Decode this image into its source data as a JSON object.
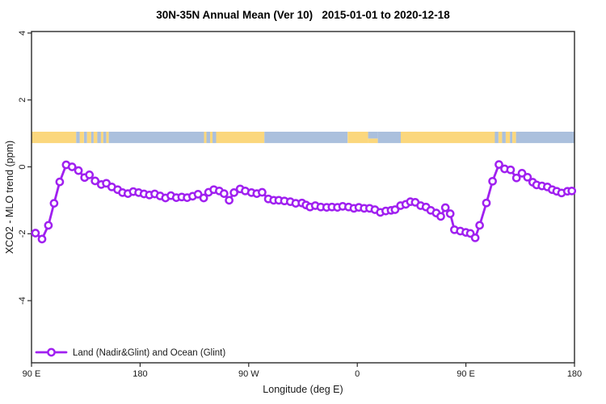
{
  "title": "30N-35N Annual Mean (Ver 10)   2015-01-01 to 2020-12-18",
  "chart_data": {
    "type": "line",
    "title": "30N-35N Annual Mean (Ver 10)   2015-01-01 to 2020-12-18",
    "xlabel": "Longitude (deg E)",
    "ylabel": "XCO2 - MLO trend (ppm)",
    "xlim": [
      90,
      540
    ],
    "ylim": [
      -5.9,
      4.1
    ],
    "grid": false,
    "x_ticks": [
      {
        "value": 90,
        "label": "90 E"
      },
      {
        "value": 180,
        "label": "180"
      },
      {
        "value": 270,
        "label": "90 W"
      },
      {
        "value": 360,
        "label": "0"
      },
      {
        "value": 450,
        "label": "90 E"
      },
      {
        "value": 540,
        "label": "180"
      }
    ],
    "y_ticks": [
      {
        "value": 4,
        "label": "4"
      },
      {
        "value": 2,
        "label": "2"
      },
      {
        "value": 0,
        "label": "0"
      },
      {
        "value": -2,
        "label": "-2"
      },
      {
        "value": -4,
        "label": "-4"
      }
    ],
    "legend": {
      "position": "bottom-left",
      "entries": [
        {
          "label": "Land (Nadir&Glint) and Ocean (Glint)",
          "color": "#A020F0",
          "marker": "open-circle"
        }
      ]
    },
    "series": [
      {
        "name": "Land (Nadir&Glint) and Ocean (Glint)",
        "color": "#A020F0",
        "x": [
          93.3,
          98.7,
          104.0,
          108.7,
          113.4,
          118.7,
          123.6,
          128.9,
          134.0,
          138.0,
          142.7,
          147.8,
          152.0,
          156.5,
          161.4,
          165.4,
          169.9,
          174.3,
          178.8,
          183.2,
          187.7,
          192.1,
          196.6,
          201.0,
          205.5,
          210.0,
          214.5,
          219.0,
          223.5,
          228.0,
          232.7,
          236.7,
          241.1,
          245.6,
          249.6,
          253.8,
          257.8,
          262.9,
          267.1,
          272.3,
          276.7,
          281.1,
          286.3,
          290.7,
          294.9,
          299.6,
          304.5,
          309.0,
          314.1,
          317.5,
          320.8,
          325.2,
          329.7,
          334.6,
          339.0,
          343.5,
          347.9,
          352.8,
          357.2,
          361.3,
          365.7,
          370.2,
          374.6,
          379.1,
          383.6,
          388.0,
          391.3,
          395.8,
          400.2,
          404.0,
          408.0,
          412.5,
          416.9,
          420.9,
          425.4,
          429.2,
          433.0,
          437.0,
          440.5,
          445.4,
          449.9,
          453.7,
          457.7,
          461.4,
          467.0,
          472.1,
          477.4,
          482.1,
          487.0,
          491.9,
          496.5,
          501.0,
          505.4,
          508.6,
          513.0,
          517.5,
          521.5,
          525.3,
          529.3,
          534.2,
          537.8
        ],
        "y": [
          -1.98,
          -2.16,
          -1.75,
          -1.09,
          -0.45,
          0.06,
          0.0,
          -0.11,
          -0.32,
          -0.24,
          -0.42,
          -0.53,
          -0.49,
          -0.6,
          -0.68,
          -0.77,
          -0.8,
          -0.74,
          -0.77,
          -0.81,
          -0.84,
          -0.81,
          -0.87,
          -0.93,
          -0.86,
          -0.92,
          -0.9,
          -0.92,
          -0.88,
          -0.82,
          -0.93,
          -0.76,
          -0.68,
          -0.72,
          -0.8,
          -1.0,
          -0.77,
          -0.66,
          -0.72,
          -0.77,
          -0.8,
          -0.76,
          -0.96,
          -1.0,
          -1.0,
          -1.02,
          -1.04,
          -1.09,
          -1.08,
          -1.14,
          -1.2,
          -1.16,
          -1.2,
          -1.21,
          -1.2,
          -1.21,
          -1.18,
          -1.2,
          -1.24,
          -1.21,
          -1.24,
          -1.24,
          -1.28,
          -1.36,
          -1.32,
          -1.3,
          -1.28,
          -1.16,
          -1.12,
          -1.04,
          -1.06,
          -1.16,
          -1.2,
          -1.3,
          -1.38,
          -1.48,
          -1.22,
          -1.4,
          -1.88,
          -1.92,
          -1.96,
          -1.99,
          -2.12,
          -1.75,
          -1.08,
          -0.43,
          0.07,
          -0.06,
          -0.09,
          -0.33,
          -0.19,
          -0.31,
          -0.46,
          -0.54,
          -0.57,
          -0.6,
          -0.68,
          -0.73,
          -0.78,
          -0.73,
          -0.72
        ]
      }
    ],
    "map_band": {
      "description": "coarse land/ocean map strip of the 30N-35N latitude belt",
      "y_range": [
        0.71,
        1.05
      ],
      "land_color": "#FBD77D",
      "ocean_color": "#ABC0DD",
      "segments": [
        {
          "from": 90,
          "to": 127,
          "surface": "land"
        },
        {
          "from": 127,
          "to": 130,
          "surface": "ocean"
        },
        {
          "from": 130,
          "to": 133.5,
          "surface": "land"
        },
        {
          "from": 133.5,
          "to": 136,
          "surface": "ocean"
        },
        {
          "from": 136,
          "to": 139.5,
          "surface": "land"
        },
        {
          "from": 139.5,
          "to": 141.5,
          "surface": "ocean"
        },
        {
          "from": 141.5,
          "to": 144.5,
          "surface": "land"
        },
        {
          "from": 144.5,
          "to": 147.5,
          "surface": "ocean"
        },
        {
          "from": 147.5,
          "to": 149.5,
          "surface": "land"
        },
        {
          "from": 149.5,
          "to": 152,
          "surface": "ocean"
        },
        {
          "from": 152,
          "to": 154,
          "surface": "land"
        },
        {
          "from": 154,
          "to": 233,
          "surface": "ocean"
        },
        {
          "from": 233,
          "to": 235,
          "surface": "land"
        },
        {
          "from": 235,
          "to": 238,
          "surface": "ocean"
        },
        {
          "from": 238,
          "to": 240,
          "surface": "land"
        },
        {
          "from": 240,
          "to": 243,
          "surface": "ocean"
        },
        {
          "from": 243,
          "to": 283,
          "surface": "land"
        },
        {
          "from": 283,
          "to": 352,
          "surface": "ocean"
        },
        {
          "from": 352,
          "to": 369,
          "surface": "land"
        },
        {
          "from": 369,
          "to": 377,
          "surface": "ocean",
          "band": [
            0,
            0.6
          ]
        },
        {
          "from": 369,
          "to": 377,
          "surface": "land",
          "band": [
            0.6,
            1
          ]
        },
        {
          "from": 377,
          "to": 396,
          "surface": "ocean"
        },
        {
          "from": 396,
          "to": 474,
          "surface": "land"
        },
        {
          "from": 474,
          "to": 477,
          "surface": "ocean"
        },
        {
          "from": 477,
          "to": 480,
          "surface": "land"
        },
        {
          "from": 480,
          "to": 483,
          "surface": "ocean"
        },
        {
          "from": 483,
          "to": 486.5,
          "surface": "land"
        },
        {
          "from": 486.5,
          "to": 488.5,
          "surface": "ocean"
        },
        {
          "from": 488.5,
          "to": 491.5,
          "surface": "land"
        },
        {
          "from": 491.5,
          "to": 540,
          "surface": "ocean"
        }
      ]
    }
  }
}
